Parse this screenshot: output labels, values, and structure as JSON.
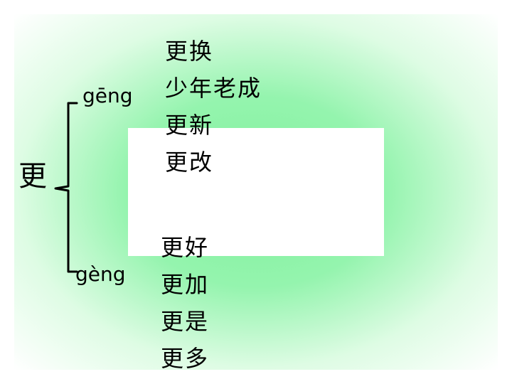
{
  "slide": {
    "head_char": "更",
    "reading_1": {
      "pinyin": "gēng",
      "words": [
        "更换",
        "少年老成",
        "更新",
        "更改"
      ]
    },
    "reading_2": {
      "pinyin": "gèng",
      "words": [
        "更好",
        "更加",
        "更是",
        "更多"
      ]
    }
  }
}
